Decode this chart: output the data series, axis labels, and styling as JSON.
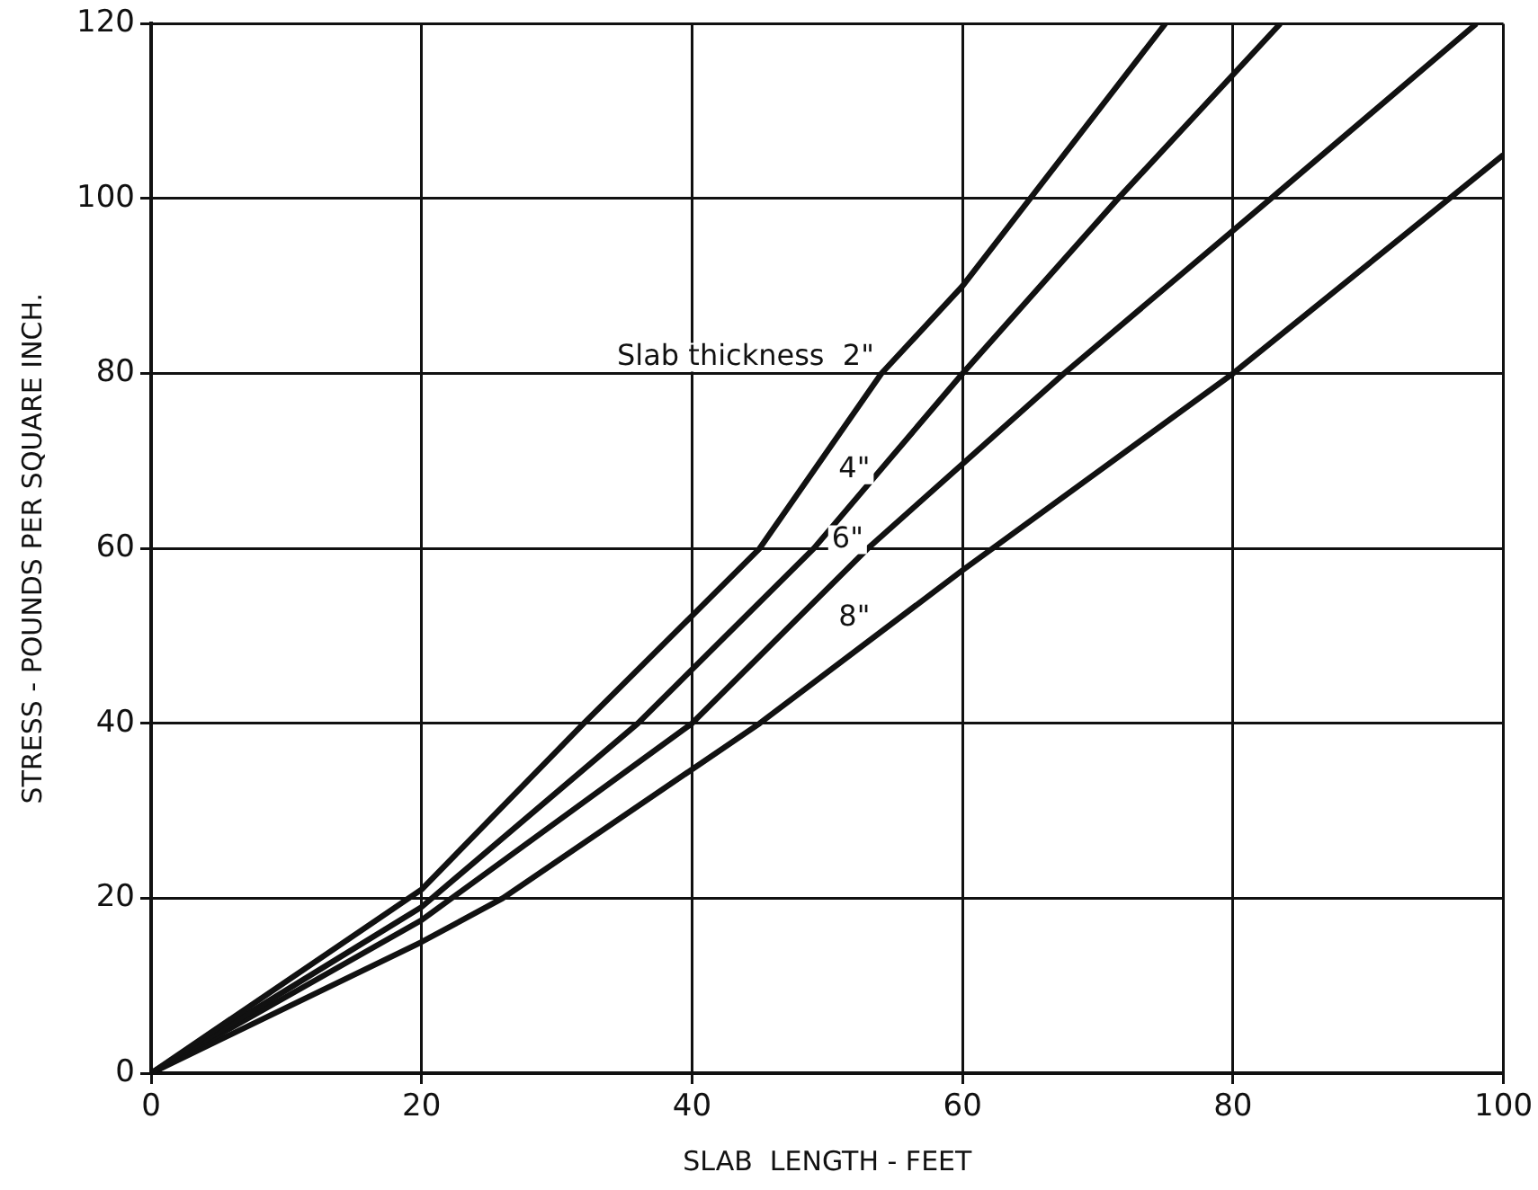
{
  "chart_data": {
    "type": "line",
    "xlabel": "SLAB  LENGTH - FEET",
    "ylabel": "STRESS - POUNDS PER SQUARE INCH.",
    "xlim": [
      0,
      100
    ],
    "xticks": [
      0,
      20,
      40,
      60,
      80,
      100
    ],
    "ylim": [
      0,
      120
    ],
    "yticks": [
      0,
      20,
      40,
      60,
      80,
      100,
      120
    ],
    "grid": true,
    "marker": "none",
    "line_style": "solid",
    "series": [
      {
        "color": "#111111",
        "x": [
          0,
          20,
          32,
          45,
          54,
          60,
          75
        ],
        "values": [
          0,
          21,
          40,
          60,
          80,
          90,
          120
        ]
      },
      {
        "color": "#111111",
        "x": [
          0,
          20,
          36,
          49,
          60,
          71.5,
          83.5
        ],
        "values": [
          0,
          19,
          40,
          60,
          80,
          100,
          120
        ]
      },
      {
        "color": "#111111",
        "x": [
          0,
          20,
          40,
          53,
          67.5,
          82.8,
          98
        ],
        "values": [
          0,
          17.5,
          40,
          60,
          80,
          100,
          120
        ]
      },
      {
        "color": "#111111",
        "x": [
          0,
          20,
          26,
          45,
          60,
          80,
          100
        ],
        "values": [
          0,
          15,
          20,
          40,
          57.5,
          80,
          105
        ]
      }
    ],
    "annotations": [
      {
        "text": "Slab thickness  2\"",
        "x": 54,
        "y": 80
      },
      {
        "text": "4\"",
        "x": 52,
        "y": 69
      },
      {
        "text": "6\"",
        "x": 51.5,
        "y": 61
      },
      {
        "text": "8\"",
        "x": 52,
        "y": 52
      }
    ]
  }
}
